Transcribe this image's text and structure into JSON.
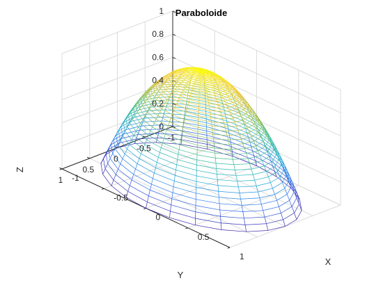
{
  "chart_data": {
    "type": "surface-mesh",
    "title": "Paraboloide",
    "xlabel": "X",
    "ylabel": "Y",
    "zlabel": "Z",
    "xlim": [
      -1,
      1
    ],
    "ylim": [
      -1,
      1
    ],
    "zlim": [
      0,
      1
    ],
    "x_ticks": [
      "-1",
      "-0.5",
      "0",
      "0.5",
      "1"
    ],
    "y_ticks": [
      "-1",
      "-0.5",
      "0",
      "0.5",
      "1"
    ],
    "z_ticks": [
      "0",
      "0.2",
      "0.4",
      "0.6",
      "0.8",
      "1"
    ],
    "surface": {
      "equation": "z = 1 - x^2 - y^2",
      "parameterization": "polar",
      "r_range": [
        0,
        1
      ],
      "z_min": 0.0,
      "radial_lines": 24,
      "circle_rings": 40
    },
    "colormap": [
      "#3e26a8",
      "#2d6df1",
      "#1fabd3",
      "#3bbe97",
      "#9cbe46",
      "#f1c23a",
      "#f9fb15"
    ],
    "grid": true,
    "box": false
  }
}
